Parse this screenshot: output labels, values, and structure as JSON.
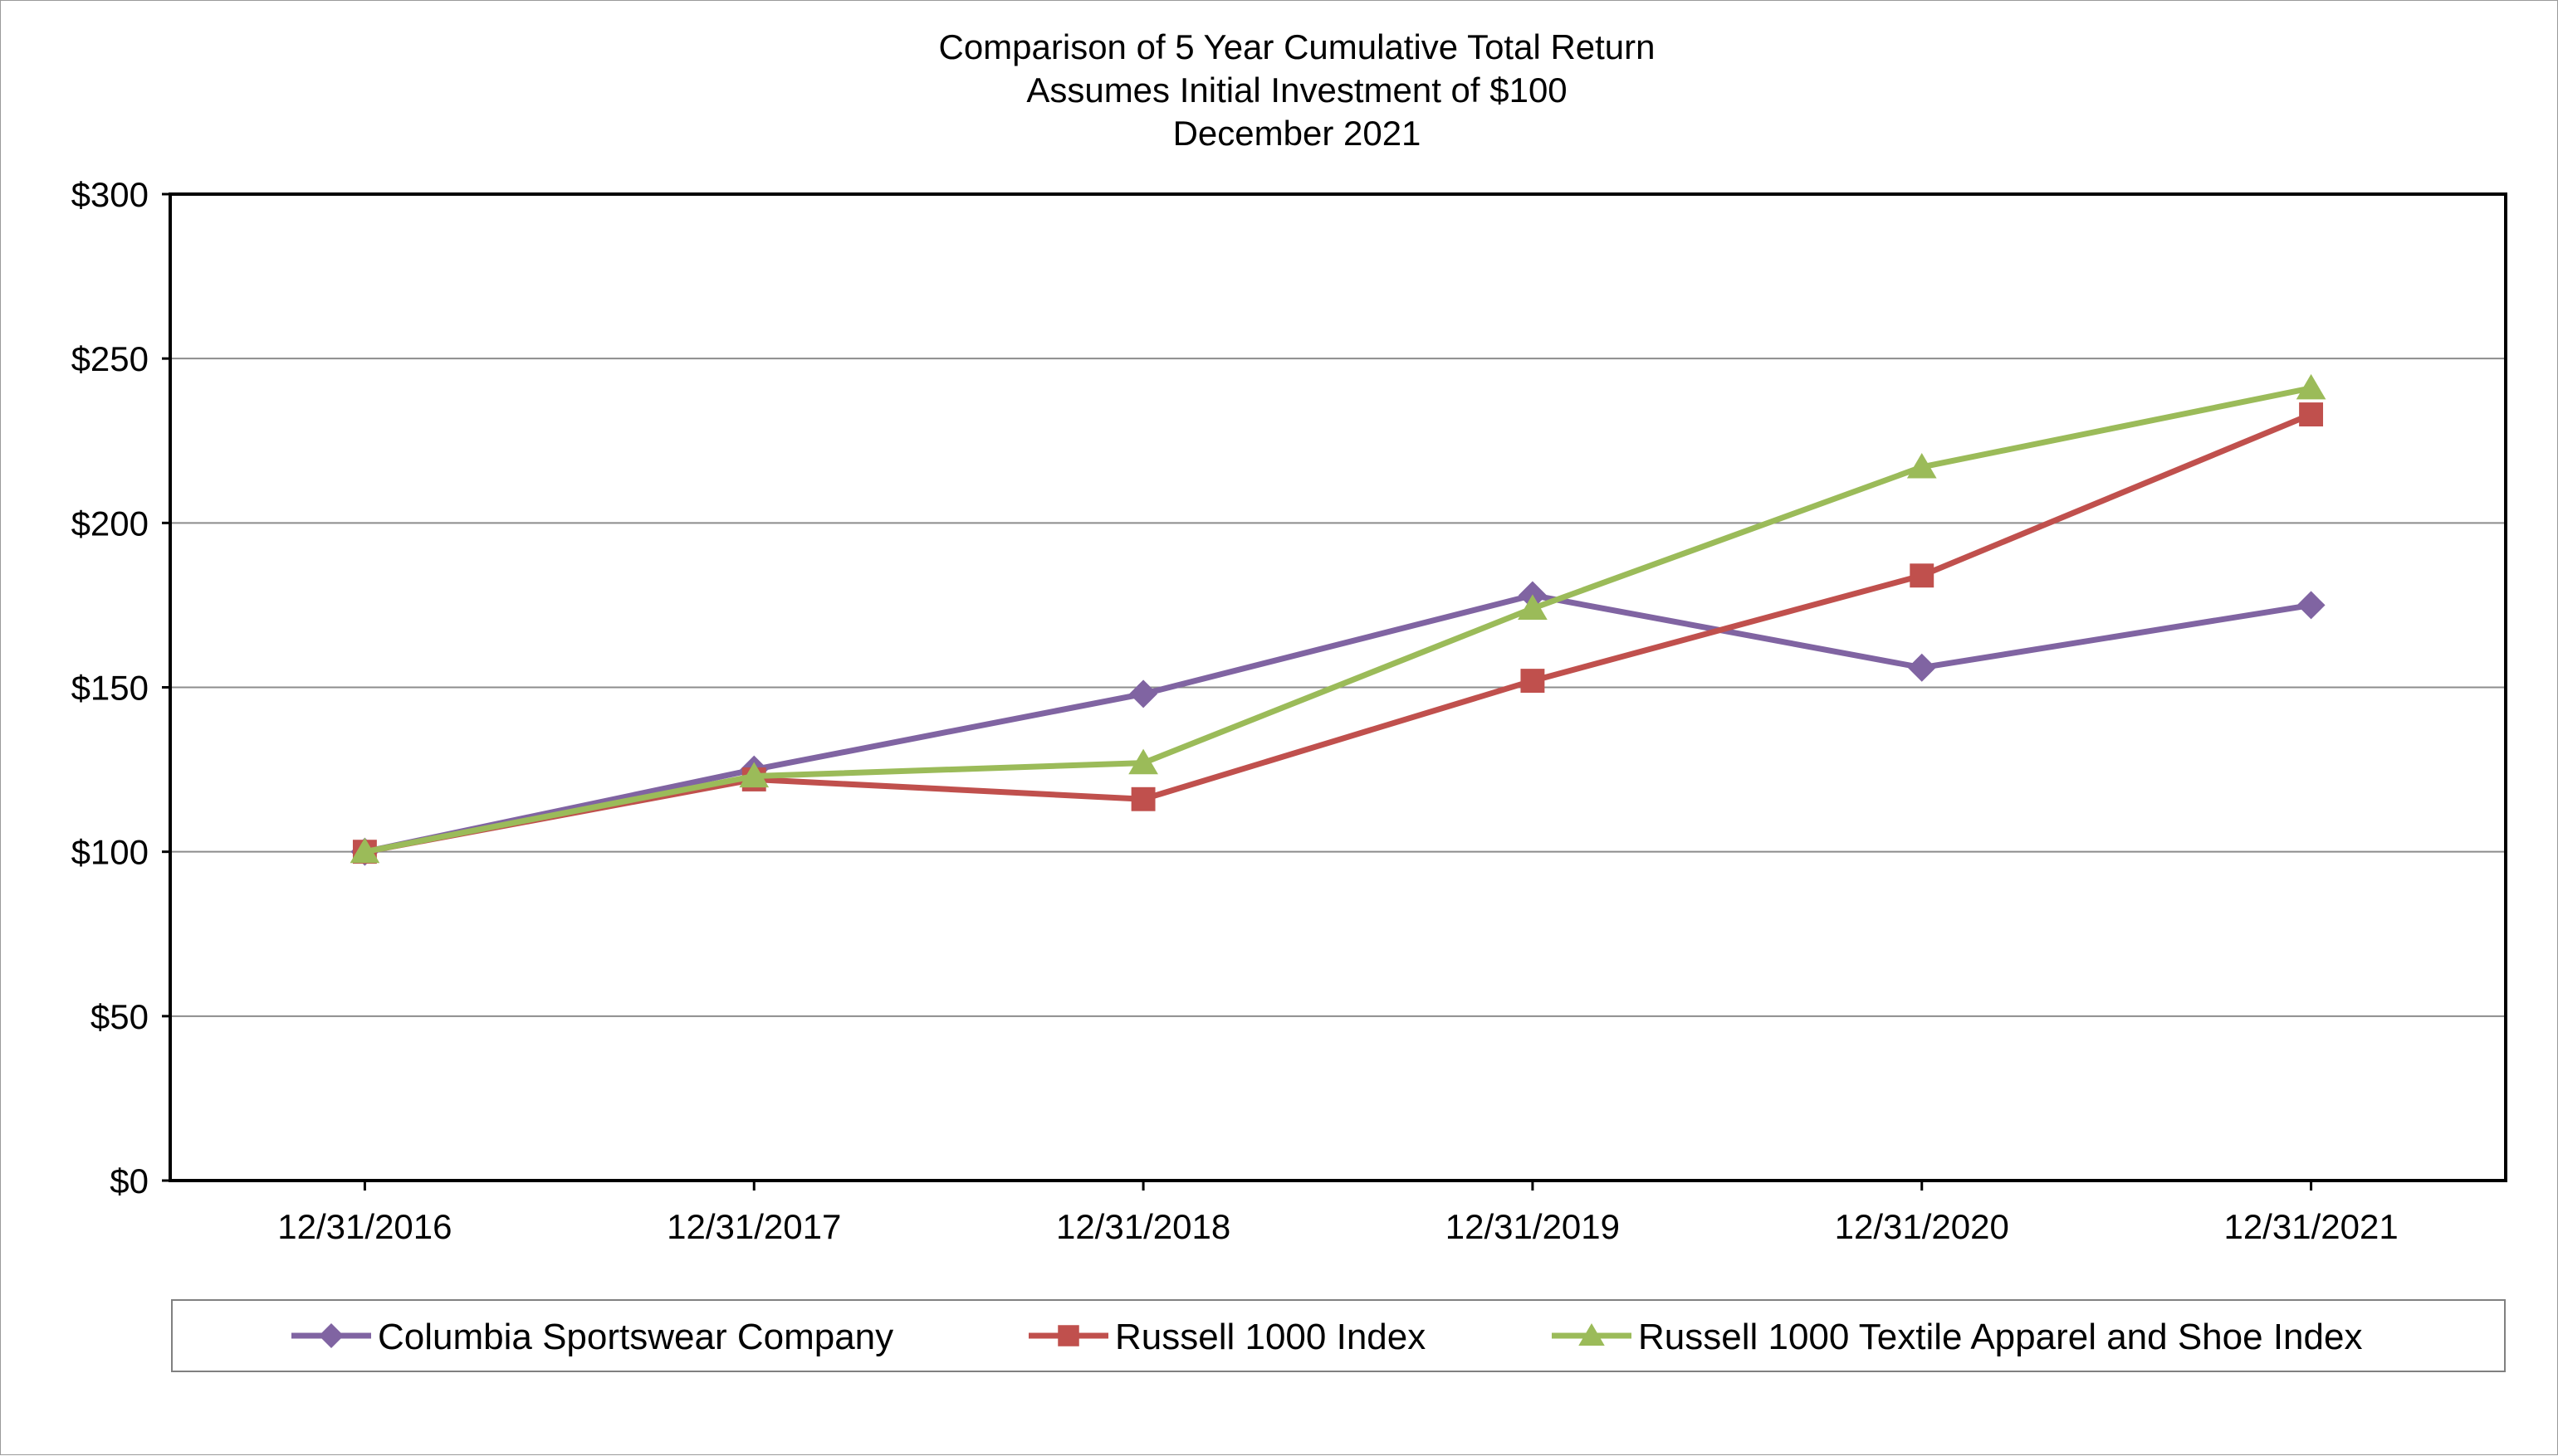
{
  "chart_data": {
    "type": "line",
    "title": "Comparison of 5 Year Cumulative Total Return",
    "subtitle": "Assumes Initial Investment of $100",
    "subtitle2": "December 2021",
    "xlabel": "",
    "ylabel": "",
    "ylim": [
      0,
      300
    ],
    "y_ticks": [
      0,
      50,
      100,
      150,
      200,
      250,
      300
    ],
    "y_tick_labels": [
      "$0",
      "$50",
      "$100",
      "$150",
      "$200",
      "$250",
      "$300"
    ],
    "grid": true,
    "legend_position": "bottom",
    "categories": [
      "12/31/2016",
      "12/31/2017",
      "12/31/2018",
      "12/31/2019",
      "12/31/2020",
      "12/31/2021"
    ],
    "series": [
      {
        "name": "Columbia Sportswear Company",
        "color": "#8064a2",
        "marker": "diamond",
        "values": [
          100,
          125,
          148,
          178,
          156,
          175
        ]
      },
      {
        "name": "Russell 1000 Index",
        "color": "#c0504d",
        "marker": "square",
        "values": [
          100,
          122,
          116,
          152,
          184,
          233
        ]
      },
      {
        "name": "Russell 1000 Textile Apparel and Shoe Index",
        "color": "#9bbb59",
        "marker": "triangle",
        "values": [
          100,
          123,
          127,
          174,
          217,
          241
        ]
      }
    ]
  }
}
